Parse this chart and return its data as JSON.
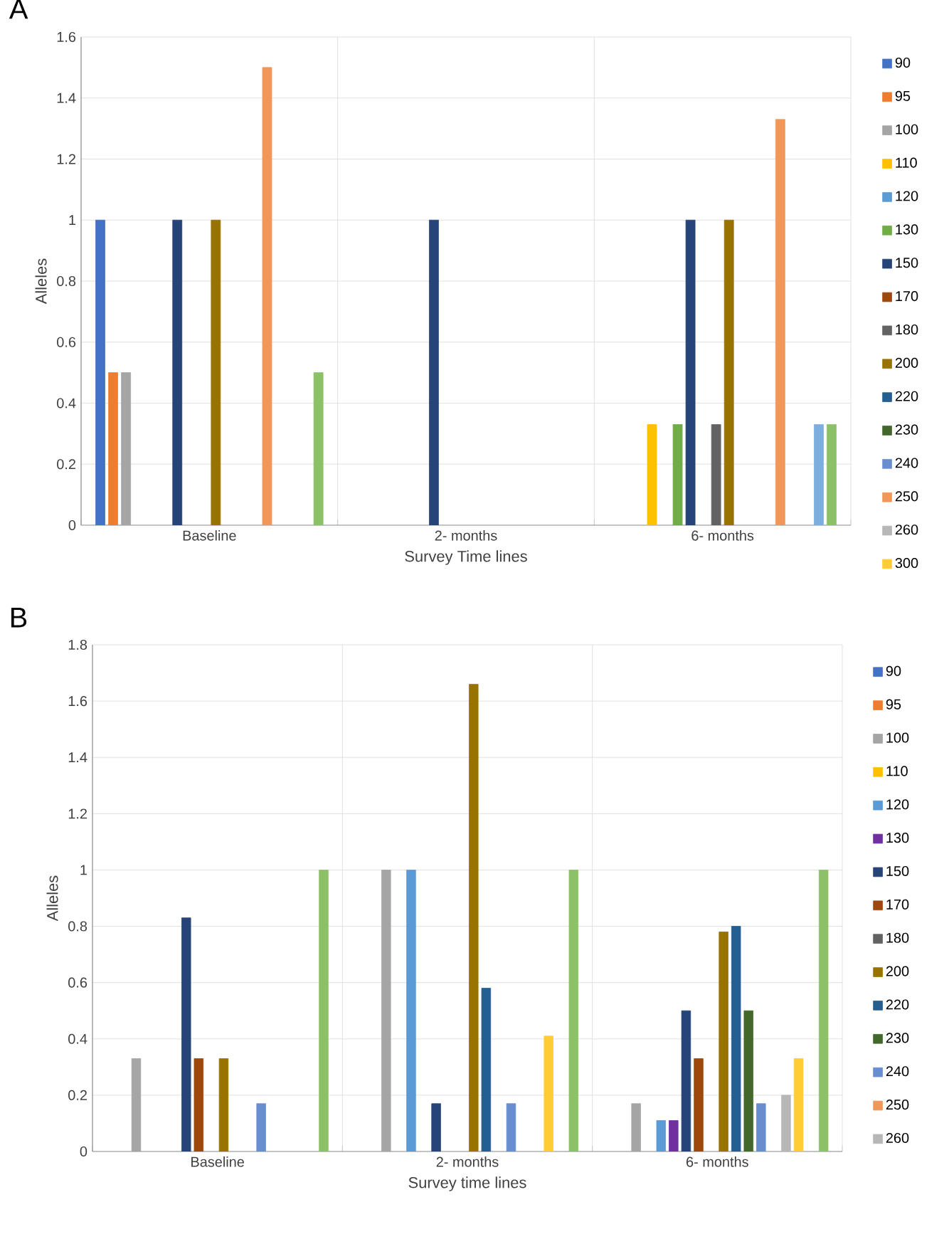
{
  "chart_data": [
    {
      "type": "bar",
      "title": "A",
      "xlabel": "Survey Time lines",
      "ylabel": "Alleles",
      "categories": [
        "Baseline",
        "2- months",
        "6- months"
      ],
      "ylim": [
        0,
        1.6
      ],
      "yticks": [
        0,
        0.2,
        0.4,
        0.6,
        0.8,
        1,
        1.2,
        1.4,
        1.6
      ],
      "grid": true,
      "legend": "right",
      "series": [
        {
          "name": "90",
          "color": "#4472c4",
          "values": [
            1,
            null,
            null
          ]
        },
        {
          "name": "95",
          "color": "#ed7d31",
          "values": [
            0.5,
            null,
            null
          ]
        },
        {
          "name": "100",
          "color": "#a5a5a5",
          "values": [
            0.5,
            null,
            null
          ]
        },
        {
          "name": "110",
          "color": "#ffc000",
          "values": [
            null,
            null,
            0.33
          ]
        },
        {
          "name": "120",
          "color": "#5b9bd5",
          "values": [
            null,
            null,
            null
          ]
        },
        {
          "name": "130",
          "color": "#70ad47",
          "values": [
            null,
            null,
            0.33
          ]
        },
        {
          "name": "150",
          "color": "#264478",
          "values": [
            1,
            1,
            1
          ]
        },
        {
          "name": "170",
          "color": "#9e480e",
          "values": [
            null,
            null,
            null
          ]
        },
        {
          "name": "180",
          "color": "#636363",
          "values": [
            null,
            null,
            0.33
          ]
        },
        {
          "name": "200",
          "color": "#997300",
          "values": [
            1,
            null,
            1
          ]
        },
        {
          "name": "220",
          "color": "#255e91",
          "values": [
            null,
            null,
            null
          ]
        },
        {
          "name": "230",
          "color": "#43682b",
          "values": [
            null,
            null,
            null
          ]
        },
        {
          "name": "240",
          "color": "#698ed0",
          "values": [
            null,
            null,
            null
          ]
        },
        {
          "name": "250",
          "color": "#f1975a",
          "values": [
            1.5,
            null,
            1.33
          ]
        },
        {
          "name": "260",
          "color": "#b7b7b7",
          "values": [
            null,
            null,
            null
          ]
        },
        {
          "name": "300",
          "color": "#ffcd33",
          "values": [
            null,
            null,
            null
          ]
        },
        {
          "color": "#7cafdd",
          "values": [
            null,
            null,
            0.33
          ]
        },
        {
          "color": "#8cc168",
          "values": [
            0.5,
            null,
            0.33
          ]
        }
      ]
    },
    {
      "type": "bar",
      "title": "B",
      "xlabel": "Survey time lines",
      "ylabel": "Alleles",
      "categories": [
        "Baseline",
        "2- months",
        "6- months"
      ],
      "ylim": [
        0,
        1.8
      ],
      "yticks": [
        0,
        0.2,
        0.4,
        0.6,
        0.8,
        1,
        1.2,
        1.4,
        1.6,
        1.8
      ],
      "grid": true,
      "legend": "right",
      "series": [
        {
          "name": "90",
          "color": "#4472c4",
          "values": [
            null,
            null,
            null
          ]
        },
        {
          "name": "95",
          "color": "#ed7d31",
          "values": [
            null,
            null,
            null
          ]
        },
        {
          "name": "100",
          "color": "#a5a5a5",
          "values": [
            0.33,
            1,
            0.17
          ]
        },
        {
          "name": "110",
          "color": "#ffc000",
          "values": [
            null,
            null,
            null
          ]
        },
        {
          "name": "120",
          "color": "#5b9bd5",
          "values": [
            null,
            1,
            0.11
          ]
        },
        {
          "name": "130",
          "color": "#7030a0",
          "values": [
            null,
            null,
            0.11
          ]
        },
        {
          "name": "150",
          "color": "#264478",
          "values": [
            0.83,
            0.17,
            0.5
          ]
        },
        {
          "name": "170",
          "color": "#9e480e",
          "values": [
            0.33,
            null,
            0.33
          ]
        },
        {
          "name": "180",
          "color": "#636363",
          "values": [
            null,
            null,
            null
          ]
        },
        {
          "name": "200",
          "color": "#997300",
          "values": [
            0.33,
            1.66,
            0.78
          ]
        },
        {
          "name": "220",
          "color": "#255e91",
          "values": [
            null,
            0.58,
            0.8
          ]
        },
        {
          "name": "230",
          "color": "#43682b",
          "values": [
            null,
            null,
            0.5
          ]
        },
        {
          "name": "240",
          "color": "#698ed0",
          "values": [
            0.17,
            0.17,
            0.17
          ]
        },
        {
          "name": "250",
          "color": "#f1975a",
          "values": [
            null,
            null,
            null
          ]
        },
        {
          "name": "260",
          "color": "#b7b7b7",
          "values": [
            null,
            null,
            0.2
          ]
        },
        {
          "color": "#ffcd33",
          "values": [
            null,
            0.41,
            0.33
          ]
        },
        {
          "color": "#7cafdd",
          "values": [
            null,
            null,
            null
          ]
        },
        {
          "color": "#8cc168",
          "values": [
            1,
            1,
            1
          ]
        }
      ]
    }
  ]
}
